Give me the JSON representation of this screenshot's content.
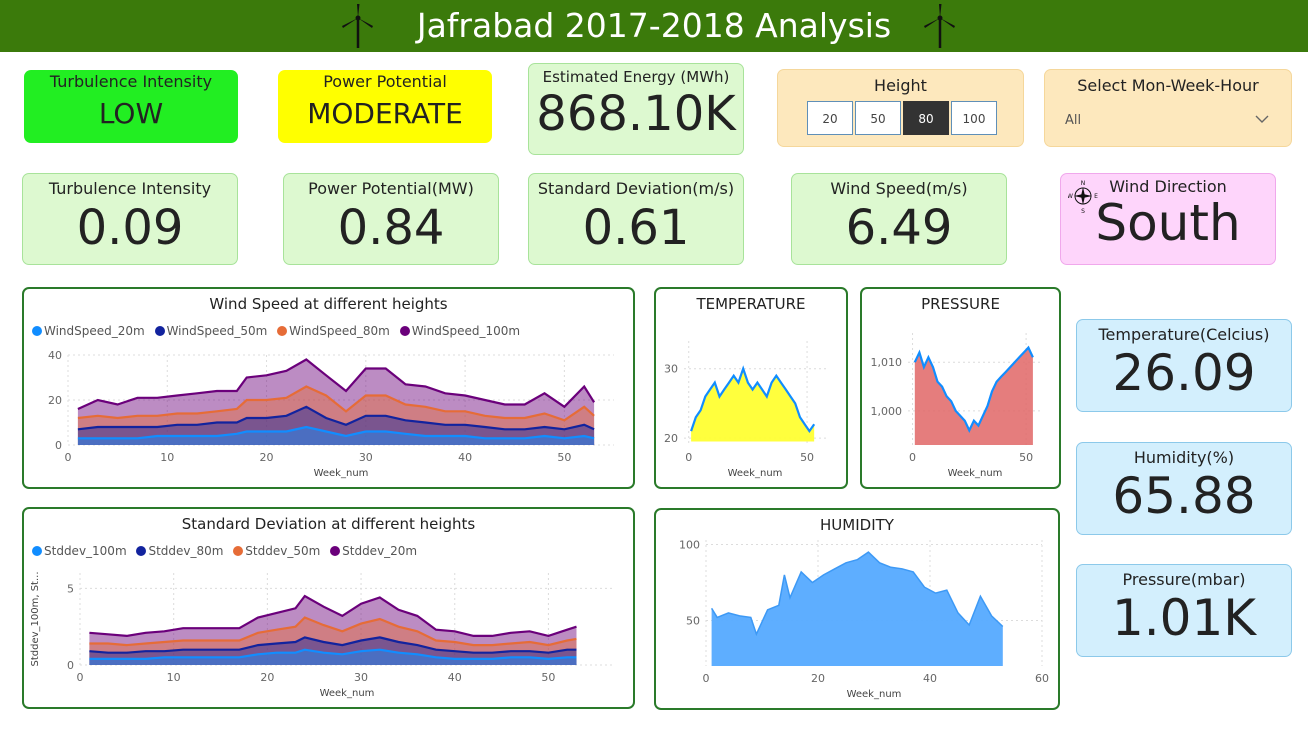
{
  "header": {
    "title": "Jafrabad 2017-2018 Analysis"
  },
  "colors": {
    "header_bg": "#3b7a0b",
    "card_green": "#ddf9d0",
    "card_blue": "#d3effd",
    "low_bg": "#22ee22",
    "moderate_bg": "#ffff00",
    "direction_bg": "#fed5fb",
    "slicer_bg": "#fde8bd"
  },
  "top_cards": {
    "turbulence_class": {
      "label": "Turbulence Intensity",
      "value": "LOW"
    },
    "power_class": {
      "label": "Power Potential",
      "value": "MODERATE"
    },
    "energy": {
      "label": "Estimated Energy (MWh)",
      "value": "868.10K"
    }
  },
  "height_slicer": {
    "label": "Height",
    "options": [
      "20",
      "50",
      "80",
      "100"
    ],
    "selected": "80"
  },
  "period_slicer": {
    "label": "Select Mon-Week-Hour",
    "value": "All"
  },
  "kpis": {
    "turbulence": {
      "label": "Turbulence Intensity",
      "value": "0.09"
    },
    "power": {
      "label": "Power Potential(MW)",
      "value": "0.84"
    },
    "stdev": {
      "label": "Standard Deviation(m/s)",
      "value": "0.61"
    },
    "wind_speed": {
      "label": "Wind Speed(m/s)",
      "value": "6.49"
    },
    "wind_direction": {
      "label": "Wind Direction",
      "value": "South",
      "icon": "compass-icon"
    },
    "temperature": {
      "label": "Temperature(Celcius)",
      "value": "26.09"
    },
    "humidity": {
      "label": "Humidity(%)",
      "value": "65.88"
    },
    "pressure": {
      "label": "Pressure(mbar)",
      "value": "1.01K"
    }
  },
  "chart_data": [
    {
      "id": "wind",
      "type": "area",
      "title": "Wind Speed at different heights",
      "xlabel": "Week_num",
      "ylabel": "",
      "xlim": [
        0,
        55
      ],
      "ylim": [
        0,
        40
      ],
      "xticks": [
        0,
        10,
        20,
        30,
        40,
        50
      ],
      "yticks": [
        0,
        20,
        40
      ],
      "legend_position": "top-left",
      "x": [
        1,
        3,
        5,
        7,
        9,
        11,
        13,
        15,
        17,
        18,
        20,
        22,
        24,
        26,
        28,
        30,
        32,
        34,
        36,
        38,
        40,
        42,
        44,
        46,
        48,
        50,
        52,
        53
      ],
      "series": [
        {
          "name": "WindSpeed_20m",
          "color": "#118dff",
          "values": [
            3,
            3,
            3,
            3,
            4,
            4,
            4,
            4,
            5,
            6,
            6,
            6,
            8,
            6,
            4,
            6,
            6,
            5,
            4,
            4,
            4,
            3,
            3,
            3,
            4,
            3,
            4,
            3
          ]
        },
        {
          "name": "WindSpeed_50m",
          "color": "#12239e",
          "values": [
            7,
            8,
            8,
            8,
            8,
            9,
            9,
            10,
            10,
            12,
            12,
            13,
            17,
            12,
            9,
            13,
            13,
            11,
            10,
            9,
            9,
            8,
            7,
            7,
            8,
            7,
            9,
            7
          ]
        },
        {
          "name": "WindSpeed_80m",
          "color": "#e66c37",
          "values": [
            12,
            13,
            12,
            13,
            13,
            14,
            14,
            15,
            16,
            20,
            20,
            21,
            26,
            22,
            15,
            22,
            22,
            18,
            17,
            15,
            15,
            13,
            12,
            12,
            14,
            11,
            17,
            13
          ]
        },
        {
          "name": "WindSpeed_100m",
          "color": "#6b007b",
          "values": [
            16,
            20,
            18,
            21,
            21,
            22,
            23,
            24,
            24,
            30,
            31,
            33,
            38,
            31,
            24,
            34,
            34,
            27,
            26,
            23,
            22,
            20,
            18,
            18,
            23,
            17,
            26,
            19
          ]
        }
      ]
    },
    {
      "id": "stdev",
      "type": "area",
      "title": "Standard Deviation at different heights",
      "xlabel": "Week_num",
      "ylabel": "Stddev_100m, St...",
      "xlim": [
        0,
        57
      ],
      "ylim": [
        0,
        6
      ],
      "xticks": [
        0,
        10,
        20,
        30,
        40,
        50
      ],
      "yticks": [
        0,
        5
      ],
      "legend_position": "top-left",
      "x": [
        1,
        3,
        5,
        7,
        9,
        11,
        13,
        15,
        17,
        19,
        21,
        23,
        24,
        26,
        28,
        30,
        32,
        34,
        36,
        38,
        40,
        42,
        44,
        46,
        48,
        50,
        52,
        53
      ],
      "series": [
        {
          "name": "Stddev_100m",
          "color": "#118dff",
          "values": [
            0.4,
            0.4,
            0.4,
            0.4,
            0.5,
            0.5,
            0.5,
            0.5,
            0.5,
            0.7,
            0.8,
            0.8,
            1.0,
            0.8,
            0.7,
            0.9,
            1.0,
            0.8,
            0.7,
            0.5,
            0.4,
            0.4,
            0.4,
            0.5,
            0.5,
            0.4,
            0.5,
            0.5
          ]
        },
        {
          "name": "Stddev_80m",
          "color": "#12239e",
          "values": [
            0.9,
            0.8,
            0.8,
            0.9,
            0.9,
            1.0,
            1.0,
            1.0,
            1.0,
            1.3,
            1.4,
            1.5,
            1.8,
            1.5,
            1.3,
            1.6,
            1.8,
            1.5,
            1.3,
            1.0,
            0.9,
            0.8,
            0.8,
            0.9,
            0.9,
            0.8,
            1.0,
            1.0
          ]
        },
        {
          "name": "Stddev_50m",
          "color": "#e66c37",
          "values": [
            1.4,
            1.4,
            1.3,
            1.4,
            1.5,
            1.6,
            1.6,
            1.6,
            1.6,
            2.1,
            2.3,
            2.5,
            3.1,
            2.6,
            2.2,
            2.7,
            3.0,
            2.5,
            2.2,
            1.6,
            1.5,
            1.3,
            1.3,
            1.4,
            1.5,
            1.3,
            1.6,
            1.7
          ]
        },
        {
          "name": "Stddev_20m",
          "color": "#6b007b",
          "values": [
            2.1,
            2.0,
            1.9,
            2.1,
            2.2,
            2.4,
            2.4,
            2.4,
            2.4,
            3.1,
            3.4,
            3.7,
            4.5,
            3.8,
            3.2,
            4.0,
            4.4,
            3.6,
            3.2,
            2.3,
            2.2,
            1.9,
            1.9,
            2.1,
            2.2,
            1.9,
            2.3,
            2.5
          ]
        }
      ]
    },
    {
      "id": "temperature",
      "type": "area",
      "title": "TEMPERATURE",
      "xlabel": "Week_num",
      "ylabel": "",
      "xlim": [
        -2,
        58
      ],
      "ylim": [
        19,
        34
      ],
      "xticks": [
        0,
        50
      ],
      "yticks": [
        20,
        30
      ],
      "x": [
        1,
        3,
        5,
        7,
        9,
        11,
        13,
        15,
        17,
        19,
        21,
        23,
        25,
        27,
        29,
        31,
        33,
        35,
        37,
        39,
        41,
        43,
        45,
        47,
        49,
        51,
        53
      ],
      "series": [
        {
          "name": "",
          "color": "#ffff33",
          "values": [
            21,
            23,
            24,
            26,
            27,
            28,
            26,
            27,
            28,
            29,
            28,
            30,
            28,
            27,
            28,
            27,
            26,
            28,
            29,
            28,
            27,
            26,
            25,
            23,
            22,
            21,
            22
          ]
        }
      ]
    },
    {
      "id": "pressure",
      "type": "area",
      "title": "PRESSURE",
      "xlabel": "Week_num",
      "ylabel": "",
      "xlim": [
        -2,
        57
      ],
      "ylim": [
        993,
        1016
      ],
      "xticks": [
        0,
        50
      ],
      "yticks": [
        1000,
        1010
      ],
      "yticklabels": [
        "1,000",
        "1,010"
      ],
      "x": [
        1,
        3,
        5,
        7,
        9,
        11,
        13,
        15,
        17,
        19,
        21,
        23,
        25,
        27,
        29,
        31,
        33,
        35,
        37,
        39,
        41,
        43,
        45,
        47,
        49,
        51,
        53
      ],
      "series": [
        {
          "name": "",
          "color": "#e06666",
          "values": [
            1010,
            1012,
            1009,
            1011,
            1009,
            1006,
            1005,
            1003,
            1002,
            1000,
            999,
            998,
            996,
            998,
            997,
            999,
            1001,
            1004,
            1006,
            1007,
            1008,
            1009,
            1010,
            1011,
            1012,
            1013,
            1011
          ]
        }
      ]
    },
    {
      "id": "humidity",
      "type": "area",
      "title": "HUMIDITY",
      "xlabel": "Week_num",
      "ylabel": "",
      "xlim": [
        0,
        60
      ],
      "ylim": [
        20,
        103
      ],
      "xticks": [
        0,
        20,
        40,
        60
      ],
      "yticks": [
        50,
        100
      ],
      "x": [
        1,
        2,
        4,
        6,
        8,
        9,
        11,
        13,
        14,
        15,
        17,
        19,
        21,
        23,
        25,
        27,
        29,
        31,
        33,
        35,
        37,
        39,
        41,
        43,
        45,
        47,
        49,
        51,
        53
      ],
      "series": [
        {
          "name": "",
          "color": "#55aaff",
          "values": [
            58,
            52,
            55,
            53,
            52,
            41,
            57,
            60,
            80,
            65,
            82,
            75,
            80,
            84,
            88,
            90,
            95,
            88,
            85,
            84,
            82,
            72,
            68,
            70,
            55,
            47,
            66,
            53,
            46
          ]
        }
      ]
    }
  ]
}
